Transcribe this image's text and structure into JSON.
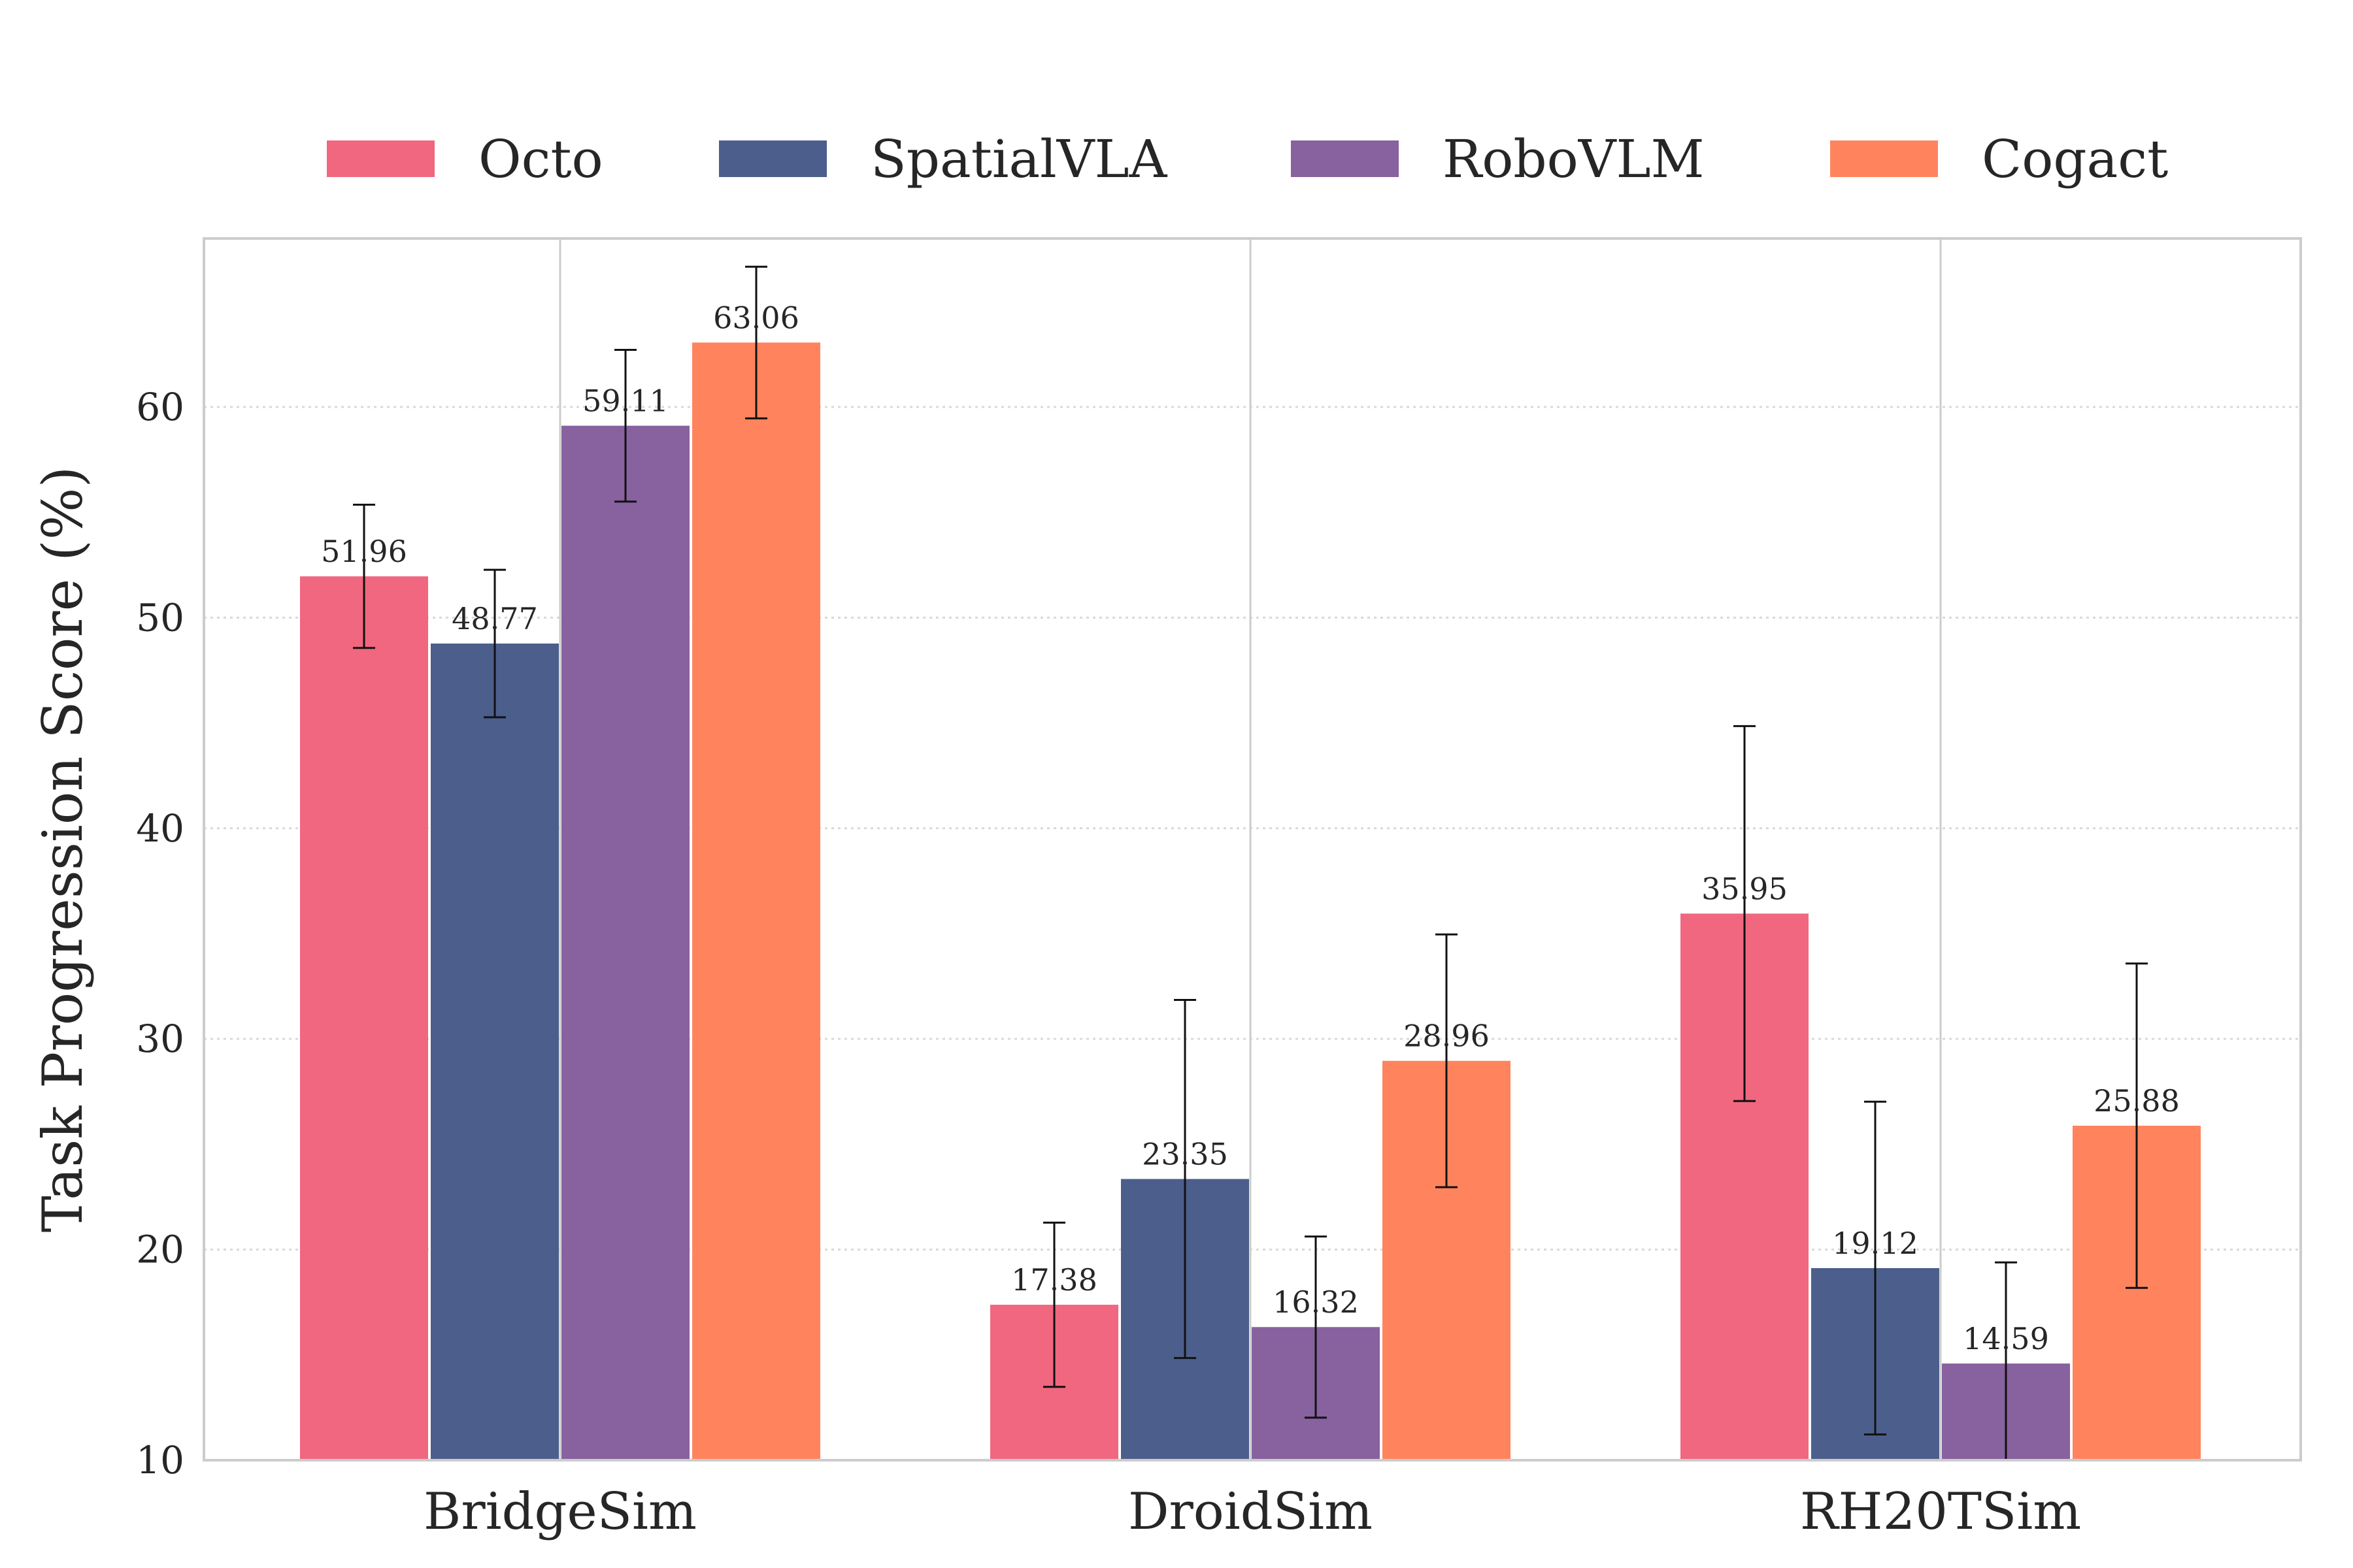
{
  "chart_data": {
    "type": "bar",
    "title": "",
    "xlabel": "",
    "ylabel": "Task Progression Score (%)",
    "ylim": [
      10,
      68
    ],
    "yticks": [
      10,
      20,
      30,
      40,
      50,
      60
    ],
    "grid": "dotted horizontal",
    "legend_position": "top-center",
    "categories": [
      "BridgeSim",
      "DroidSim",
      "RH20TSim"
    ],
    "series": [
      {
        "name": "Octo",
        "color": "#F0677F",
        "values": [
          51.96,
          17.38,
          35.95
        ],
        "errors": [
          3.4,
          3.9,
          8.9
        ],
        "labels": [
          "51.96",
          "17.38",
          "35.95"
        ]
      },
      {
        "name": "SpatialVLA",
        "color": "#4C5E8B",
        "values": [
          48.77,
          23.35,
          19.12
        ],
        "errors": [
          3.5,
          8.5,
          7.9
        ],
        "labels": [
          "48.77",
          "23.35",
          "19.12"
        ]
      },
      {
        "name": "RoboVLM",
        "color": "#88619F",
        "values": [
          59.11,
          16.32,
          14.59
        ],
        "errors": [
          3.6,
          4.3,
          4.8
        ],
        "labels": [
          "59.11",
          "16.32",
          "14.59"
        ]
      },
      {
        "name": "Cogact",
        "color": "#FF845E",
        "values": [
          63.06,
          28.96,
          25.88
        ],
        "errors": [
          3.6,
          6.0,
          7.7
        ],
        "labels": [
          "63.06",
          "28.96",
          "25.88"
        ]
      }
    ]
  }
}
